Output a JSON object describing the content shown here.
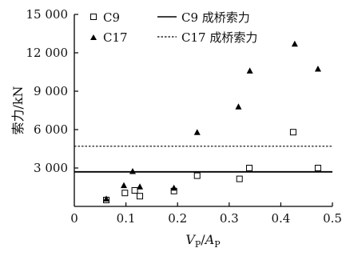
{
  "chart_data": {
    "type": "scatter",
    "xlim": [
      0,
      0.5
    ],
    "ylim": [
      0,
      15000
    ],
    "x_ticks": [
      0,
      0.1,
      0.2,
      0.3,
      0.4,
      0.5
    ],
    "x_tick_labels": [
      "0",
      "0.1",
      "0.2",
      "0.3",
      "0.4",
      "0.5"
    ],
    "y_ticks": [
      3000,
      6000,
      9000,
      12000,
      15000
    ],
    "y_tick_labels": [
      "3 000",
      "6 000",
      "9 000",
      "12 000",
      "15 000"
    ],
    "ylabel": "索力/kN",
    "xlabel": {
      "base1": "V",
      "sub1": "P",
      "sep": "/",
      "base2": "A",
      "sub2": "P"
    },
    "grid": false,
    "legend_position": "top",
    "series": [
      {
        "name": "C9",
        "marker": "open-square",
        "color": "#000000",
        "points": [
          [
            0.062,
            500
          ],
          [
            0.098,
            1050
          ],
          [
            0.117,
            1250
          ],
          [
            0.127,
            800
          ],
          [
            0.193,
            1200
          ],
          [
            0.238,
            2400
          ],
          [
            0.32,
            2150
          ],
          [
            0.339,
            3000
          ],
          [
            0.424,
            5800
          ],
          [
            0.472,
            3000
          ]
        ]
      },
      {
        "name": "C17",
        "marker": "filled-triangle",
        "color": "#000000",
        "points": [
          [
            0.062,
            600
          ],
          [
            0.096,
            1650
          ],
          [
            0.113,
            2750
          ],
          [
            0.127,
            1550
          ],
          [
            0.193,
            1450
          ],
          [
            0.238,
            5800
          ],
          [
            0.318,
            7800
          ],
          [
            0.34,
            10600
          ],
          [
            0.427,
            12700
          ],
          [
            0.472,
            10750
          ]
        ]
      },
      {
        "name": "C9 成桥索力",
        "line": "solid",
        "color": "#000000",
        "value": 2700
      },
      {
        "name": "C17 成桥索力",
        "line": "dashed",
        "color": "#000000",
        "value": 4700
      }
    ]
  }
}
